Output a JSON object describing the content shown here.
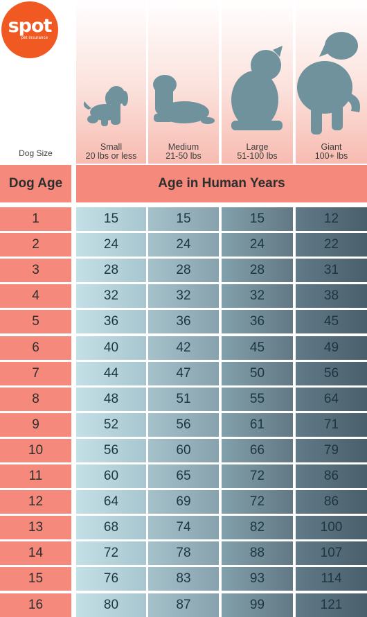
{
  "logo": {
    "word": "spot",
    "sub": "pet insurance",
    "color": "#f05a22"
  },
  "header": {
    "dog_size_label": "Dog Size",
    "dog_age_label": "Dog Age",
    "human_years_label": "Age in Human Years"
  },
  "sizes": [
    {
      "name": "Small",
      "range": "20 lbs or less",
      "icon": "small-dog-icon"
    },
    {
      "name": "Medium",
      "range": "21-50 lbs",
      "icon": "medium-dog-icon"
    },
    {
      "name": "Large",
      "range": "51-100 lbs",
      "icon": "large-dog-icon"
    },
    {
      "name": "Giant",
      "range": "100+ lbs",
      "icon": "giant-dog-icon"
    }
  ],
  "rows": [
    {
      "age": "1",
      "values": [
        "15",
        "15",
        "15",
        "12"
      ]
    },
    {
      "age": "2",
      "values": [
        "24",
        "24",
        "24",
        "22"
      ]
    },
    {
      "age": "3",
      "values": [
        "28",
        "28",
        "28",
        "31"
      ]
    },
    {
      "age": "4",
      "values": [
        "32",
        "32",
        "32",
        "38"
      ]
    },
    {
      "age": "5",
      "values": [
        "36",
        "36",
        "36",
        "45"
      ]
    },
    {
      "age": "6",
      "values": [
        "40",
        "42",
        "45",
        "49"
      ]
    },
    {
      "age": "7",
      "values": [
        "44",
        "47",
        "50",
        "56"
      ]
    },
    {
      "age": "8",
      "values": [
        "48",
        "51",
        "55",
        "64"
      ]
    },
    {
      "age": "9",
      "values": [
        "52",
        "56",
        "61",
        "71"
      ]
    },
    {
      "age": "10",
      "values": [
        "56",
        "60",
        "66",
        "79"
      ]
    },
    {
      "age": "11",
      "values": [
        "60",
        "65",
        "72",
        "86"
      ]
    },
    {
      "age": "12",
      "values": [
        "64",
        "69",
        "72",
        "86"
      ]
    },
    {
      "age": "13",
      "values": [
        "68",
        "74",
        "82",
        "100"
      ]
    },
    {
      "age": "14",
      "values": [
        "72",
        "78",
        "88",
        "107"
      ]
    },
    {
      "age": "15",
      "values": [
        "76",
        "83",
        "93",
        "114"
      ]
    },
    {
      "age": "16",
      "values": [
        "80",
        "87",
        "99",
        "121"
      ]
    }
  ],
  "colors": {
    "header_bg": "#f5897b",
    "dog_silhouette": "#6f929d"
  }
}
